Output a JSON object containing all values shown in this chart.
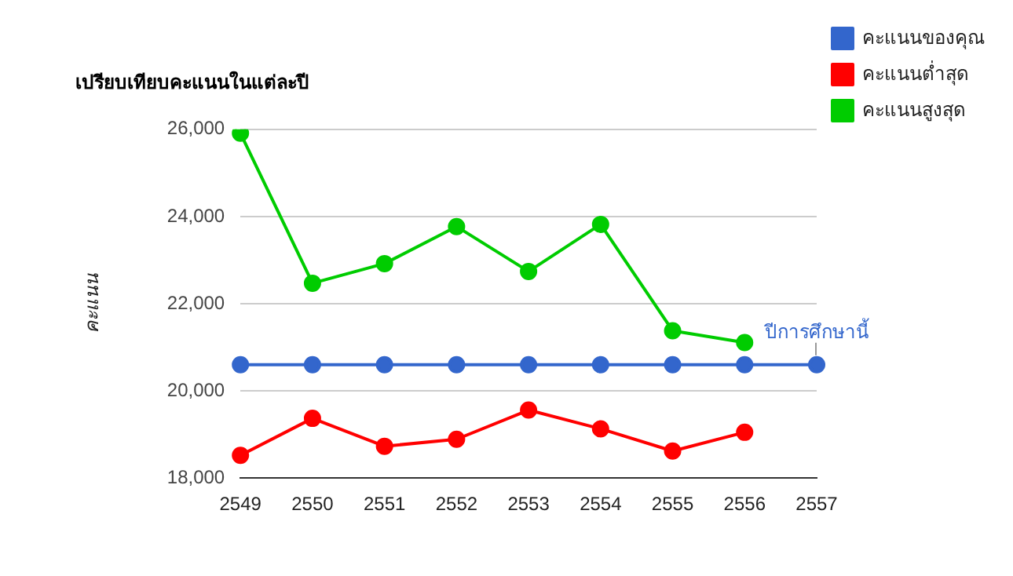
{
  "chart_data": {
    "type": "line",
    "title": "เปรียบเทียบคะแนนในแต่ละปี",
    "ylabel": "คะแนน",
    "categories": [
      "2549",
      "2550",
      "2551",
      "2552",
      "2553",
      "2554",
      "2555",
      "2556",
      "2557"
    ],
    "series": [
      {
        "name": "คะแนนของคุณ",
        "color": "#3366cc",
        "values": [
          20600,
          20600,
          20600,
          20600,
          20600,
          20600,
          20600,
          20600,
          20600
        ]
      },
      {
        "name": "คะแนนต่ำสุด",
        "color": "#ff0000",
        "values": [
          18520,
          19370,
          18730,
          18890,
          19560,
          19130,
          18620,
          19050,
          null
        ]
      },
      {
        "name": "คะแนนสูงสุด",
        "color": "#00cc00",
        "values": [
          25910,
          22470,
          22920,
          23770,
          22740,
          23820,
          21380,
          21110,
          null
        ]
      }
    ],
    "ylim": [
      18000,
      26000
    ],
    "yticks": [
      {
        "value": 18000,
        "label": "18,000"
      },
      {
        "value": 20000,
        "label": "20,000"
      },
      {
        "value": 22000,
        "label": "22,000"
      },
      {
        "value": 24000,
        "label": "24,000"
      },
      {
        "value": 26000,
        "label": "26,000"
      }
    ],
    "grid": "y",
    "legend": "right",
    "marker": "circle",
    "line_style": "solid",
    "annotations": [
      {
        "text": "ปีการศึกษานี้",
        "x": "2557",
        "y": 20600
      }
    ]
  }
}
